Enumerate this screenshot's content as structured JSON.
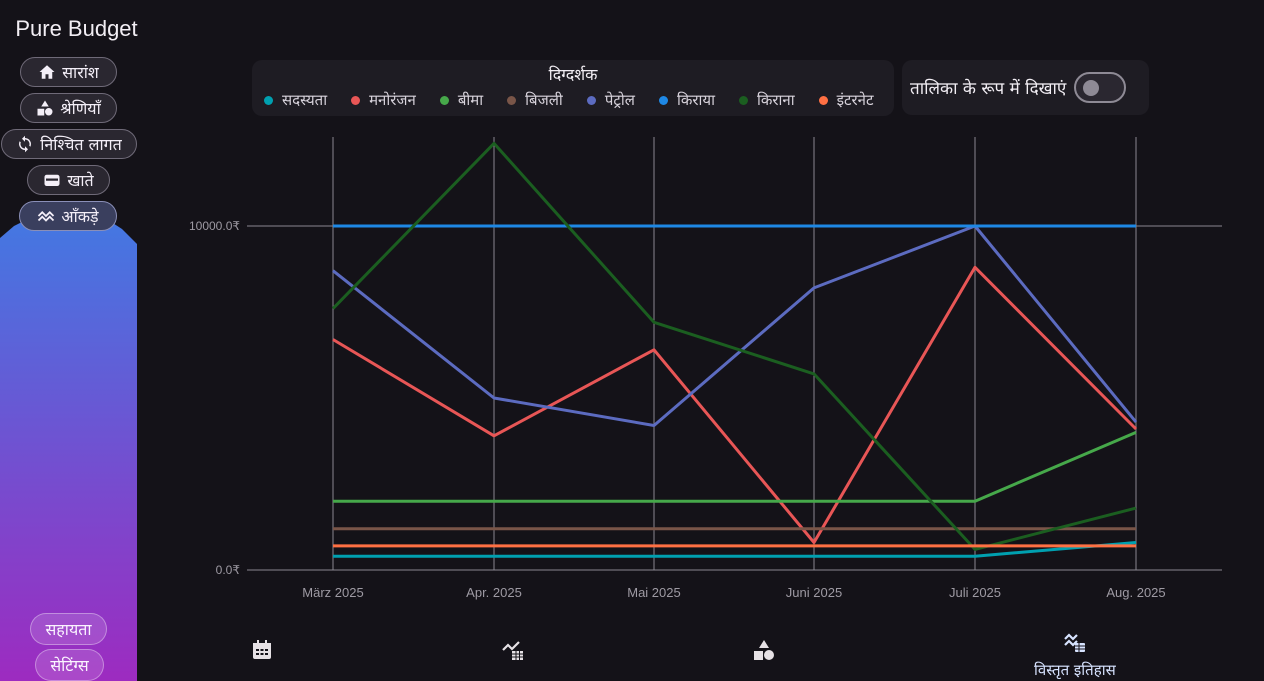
{
  "app": {
    "title": "Pure Budget"
  },
  "sidebar": {
    "items": [
      {
        "label": "सारांश",
        "icon": "home-icon"
      },
      {
        "label": "श्रेणियाँ",
        "icon": "categories-icon"
      },
      {
        "label": "निश्चित लागत",
        "icon": "sync-icon"
      },
      {
        "label": "खाते",
        "icon": "wallet-icon"
      },
      {
        "label": "आँकड़े",
        "icon": "chart-icon",
        "active": true
      }
    ],
    "help_label": "सहायता",
    "settings_label": "सेटिंग्स",
    "gradient_top": "#4378e2",
    "gradient_bottom": "#9d2bc0"
  },
  "legend": {
    "title": "दिग्दर्शक",
    "items": [
      {
        "label": "सदस्यता",
        "color": "#00a0b0"
      },
      {
        "label": "मनोरंजन",
        "color": "#e85656"
      },
      {
        "label": "बीमा",
        "color": "#46a84a"
      },
      {
        "label": "बिजली",
        "color": "#795548"
      },
      {
        "label": "पेट्रोल",
        "color": "#5c6bc0"
      },
      {
        "label": "किराया",
        "color": "#1e88e5"
      },
      {
        "label": "किराना",
        "color": "#1b5e20"
      },
      {
        "label": "इंटरनेट",
        "color": "#ff7043"
      }
    ]
  },
  "toggle": {
    "label": "तालिका के रूप में दिखाएं",
    "checked": false
  },
  "bottom_tabs": [
    {
      "icon": "calendar-icon",
      "label": ""
    },
    {
      "icon": "trend-table-icon",
      "label": ""
    },
    {
      "icon": "categories-icon",
      "label": ""
    },
    {
      "icon": "detailed-history-icon",
      "label": "विस्तृत इतिहास",
      "active": true
    }
  ],
  "chart_data": {
    "type": "line",
    "categories": [
      "März 2025",
      "Apr. 2025",
      "Mai 2025",
      "Juni 2025",
      "Juli 2025",
      "Aug. 2025"
    ],
    "y_tick_labels": [
      "10000.0₹",
      "0.0₹"
    ],
    "ylim": [
      0,
      10000
    ],
    "grid": "vertical",
    "series": [
      {
        "name": "सदस्यता",
        "color": "#00a0b0",
        "values": [
          400,
          400,
          400,
          400,
          400,
          800
        ]
      },
      {
        "name": "मनोरंजन",
        "color": "#e85656",
        "values": [
          6700,
          3900,
          6400,
          800,
          8800,
          4100
        ]
      },
      {
        "name": "बीमा",
        "color": "#46a84a",
        "values": [
          2000,
          2000,
          2000,
          2000,
          2000,
          4000
        ]
      },
      {
        "name": "बिजली",
        "color": "#795548",
        "values": [
          1200,
          1200,
          1200,
          1200,
          1200,
          1200
        ]
      },
      {
        "name": "पेट्रोल",
        "color": "#5c6bc0",
        "values": [
          8700,
          5000,
          4200,
          8200,
          10000,
          4300
        ]
      },
      {
        "name": "किराया",
        "color": "#1e88e5",
        "values": [
          10000,
          10000,
          10000,
          10000,
          10000,
          10000
        ]
      },
      {
        "name": "किराना",
        "color": "#1b5e20",
        "values": [
          7600,
          12400,
          7200,
          5700,
          600,
          1800
        ]
      },
      {
        "name": "इंटरनेट",
        "color": "#ff7043",
        "values": [
          700,
          700,
          700,
          700,
          700,
          700
        ]
      }
    ]
  }
}
